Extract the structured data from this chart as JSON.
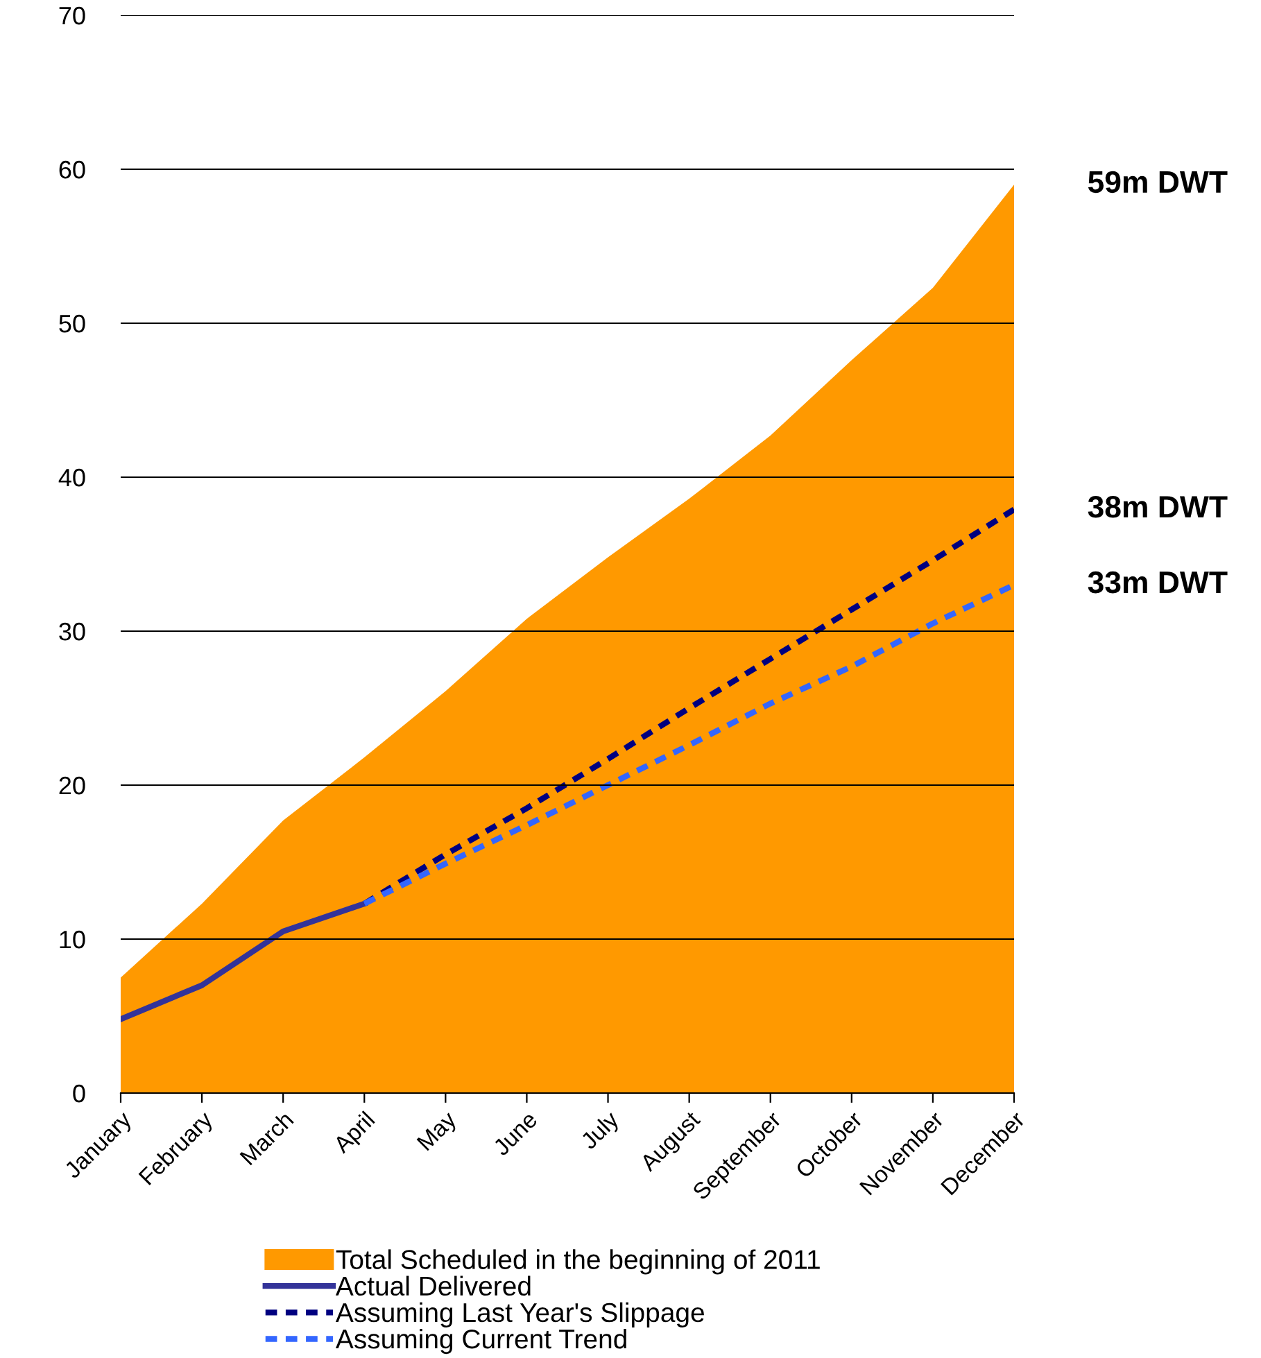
{
  "chart_data": {
    "type": "line",
    "categories": [
      "January",
      "February",
      "March",
      "April",
      "May",
      "June",
      "July",
      "August",
      "September",
      "October",
      "November",
      "December"
    ],
    "series": [
      {
        "name": "Total Scheduled in the beginning of 2011",
        "type": "area",
        "color": "#ff9900",
        "values": [
          7.5,
          12.3,
          17.7,
          21.8,
          26.1,
          30.8,
          34.8,
          38.6,
          42.7,
          47.6,
          52.3,
          59
        ]
      },
      {
        "name": "Actual Delivered",
        "color": "#333399",
        "line_style": "solid",
        "values": [
          4.8,
          7.0,
          10.5,
          12.3,
          null,
          null,
          null,
          null,
          null,
          null,
          null,
          null
        ]
      },
      {
        "name": "Assuming Last Year's Slippage",
        "color": "#000080",
        "line_style": "dashed",
        "values": [
          null,
          null,
          null,
          12.3,
          15.5,
          18.5,
          21.7,
          25,
          28.2,
          31.4,
          34.6,
          37.9
        ]
      },
      {
        "name": "Assuming Current Trend",
        "color": "#3366ff",
        "line_style": "dashed",
        "values": [
          null,
          null,
          null,
          12.3,
          14.9,
          17.4,
          20,
          22.6,
          25.3,
          27.7,
          30.5,
          33
        ]
      }
    ],
    "ylim": [
      0,
      70
    ],
    "yticks": [
      0,
      10,
      20,
      30,
      40,
      50,
      60,
      70
    ],
    "grid": "y",
    "legend": "bottom",
    "marker": "none",
    "annotations": [
      {
        "text": "59m DWT",
        "x": "December",
        "y": 59
      },
      {
        "text": "38m DWT",
        "x": "December",
        "y": 37.9
      },
      {
        "text": "33m DWT",
        "x": "December",
        "y": 33
      }
    ]
  }
}
